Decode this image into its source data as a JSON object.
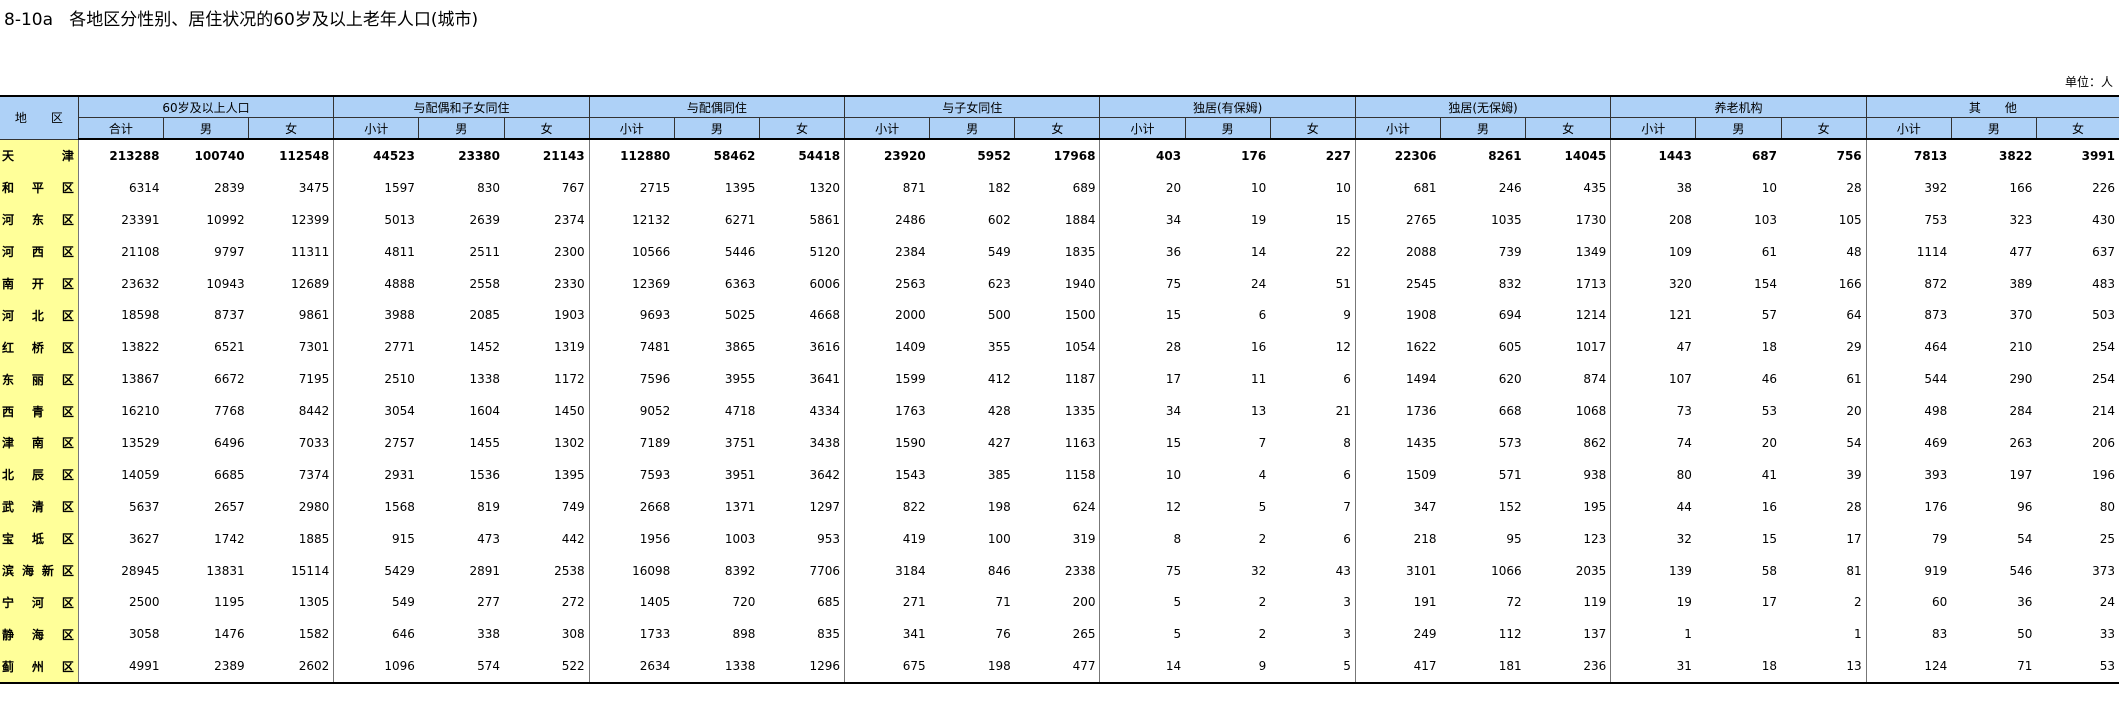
{
  "title": "8-10a   各地区分性别、居住状况的60岁及以上老年人口(城市)",
  "unit": "单位：人",
  "region_header": "地　　区",
  "groups": [
    "60岁及以上人口",
    "与配偶和子女同住",
    "与配偶同住",
    "与子女同住",
    "独居(有保姆)",
    "独居(无保姆)",
    "养老机构",
    "其　　他"
  ],
  "subheaders": [
    [
      "合计",
      "男",
      "女"
    ],
    [
      "小计",
      "男",
      "女"
    ],
    [
      "小计",
      "男",
      "女"
    ],
    [
      "小计",
      "男",
      "女"
    ],
    [
      "小计",
      "男",
      "女"
    ],
    [
      "小计",
      "男",
      "女"
    ],
    [
      "小计",
      "男",
      "女"
    ],
    [
      "小计",
      "男",
      "女"
    ]
  ],
  "rows": [
    {
      "region": "天　津",
      "values": [
        "213288",
        "100740",
        "112548",
        "44523",
        "23380",
        "21143",
        "112880",
        "58462",
        "54418",
        "23920",
        "5952",
        "17968",
        "403",
        "176",
        "227",
        "22306",
        "8261",
        "14045",
        "1443",
        "687",
        "756",
        "7813",
        "3822",
        "3991"
      ]
    },
    {
      "region": "和平区",
      "values": [
        "6314",
        "2839",
        "3475",
        "1597",
        "830",
        "767",
        "2715",
        "1395",
        "1320",
        "871",
        "182",
        "689",
        "20",
        "10",
        "10",
        "681",
        "246",
        "435",
        "38",
        "10",
        "28",
        "392",
        "166",
        "226"
      ]
    },
    {
      "region": "河东区",
      "values": [
        "23391",
        "10992",
        "12399",
        "5013",
        "2639",
        "2374",
        "12132",
        "6271",
        "5861",
        "2486",
        "602",
        "1884",
        "34",
        "19",
        "15",
        "2765",
        "1035",
        "1730",
        "208",
        "103",
        "105",
        "753",
        "323",
        "430"
      ]
    },
    {
      "region": "河西区",
      "values": [
        "21108",
        "9797",
        "11311",
        "4811",
        "2511",
        "2300",
        "10566",
        "5446",
        "5120",
        "2384",
        "549",
        "1835",
        "36",
        "14",
        "22",
        "2088",
        "739",
        "1349",
        "109",
        "61",
        "48",
        "1114",
        "477",
        "637"
      ]
    },
    {
      "region": "南开区",
      "values": [
        "23632",
        "10943",
        "12689",
        "4888",
        "2558",
        "2330",
        "12369",
        "6363",
        "6006",
        "2563",
        "623",
        "1940",
        "75",
        "24",
        "51",
        "2545",
        "832",
        "1713",
        "320",
        "154",
        "166",
        "872",
        "389",
        "483"
      ]
    },
    {
      "region": "河北区",
      "values": [
        "18598",
        "8737",
        "9861",
        "3988",
        "2085",
        "1903",
        "9693",
        "5025",
        "4668",
        "2000",
        "500",
        "1500",
        "15",
        "6",
        "9",
        "1908",
        "694",
        "1214",
        "121",
        "57",
        "64",
        "873",
        "370",
        "503"
      ]
    },
    {
      "region": "红桥区",
      "values": [
        "13822",
        "6521",
        "7301",
        "2771",
        "1452",
        "1319",
        "7481",
        "3865",
        "3616",
        "1409",
        "355",
        "1054",
        "28",
        "16",
        "12",
        "1622",
        "605",
        "1017",
        "47",
        "18",
        "29",
        "464",
        "210",
        "254"
      ]
    },
    {
      "region": "东丽区",
      "values": [
        "13867",
        "6672",
        "7195",
        "2510",
        "1338",
        "1172",
        "7596",
        "3955",
        "3641",
        "1599",
        "412",
        "1187",
        "17",
        "11",
        "6",
        "1494",
        "620",
        "874",
        "107",
        "46",
        "61",
        "544",
        "290",
        "254"
      ]
    },
    {
      "region": "西青区",
      "values": [
        "16210",
        "7768",
        "8442",
        "3054",
        "1604",
        "1450",
        "9052",
        "4718",
        "4334",
        "1763",
        "428",
        "1335",
        "34",
        "13",
        "21",
        "1736",
        "668",
        "1068",
        "73",
        "53",
        "20",
        "498",
        "284",
        "214"
      ]
    },
    {
      "region": "津南区",
      "values": [
        "13529",
        "6496",
        "7033",
        "2757",
        "1455",
        "1302",
        "7189",
        "3751",
        "3438",
        "1590",
        "427",
        "1163",
        "15",
        "7",
        "8",
        "1435",
        "573",
        "862",
        "74",
        "20",
        "54",
        "469",
        "263",
        "206"
      ]
    },
    {
      "region": "北辰区",
      "values": [
        "14059",
        "6685",
        "7374",
        "2931",
        "1536",
        "1395",
        "7593",
        "3951",
        "3642",
        "1543",
        "385",
        "1158",
        "10",
        "4",
        "6",
        "1509",
        "571",
        "938",
        "80",
        "41",
        "39",
        "393",
        "197",
        "196"
      ]
    },
    {
      "region": "武清区",
      "values": [
        "5637",
        "2657",
        "2980",
        "1568",
        "819",
        "749",
        "2668",
        "1371",
        "1297",
        "822",
        "198",
        "624",
        "12",
        "5",
        "7",
        "347",
        "152",
        "195",
        "44",
        "16",
        "28",
        "176",
        "96",
        "80"
      ]
    },
    {
      "region": "宝坻区",
      "values": [
        "3627",
        "1742",
        "1885",
        "915",
        "473",
        "442",
        "1956",
        "1003",
        "953",
        "419",
        "100",
        "319",
        "8",
        "2",
        "6",
        "218",
        "95",
        "123",
        "32",
        "15",
        "17",
        "79",
        "54",
        "25"
      ]
    },
    {
      "region": "滨海新区",
      "values": [
        "28945",
        "13831",
        "15114",
        "5429",
        "2891",
        "2538",
        "16098",
        "8392",
        "7706",
        "3184",
        "846",
        "2338",
        "75",
        "32",
        "43",
        "3101",
        "1066",
        "2035",
        "139",
        "58",
        "81",
        "919",
        "546",
        "373"
      ]
    },
    {
      "region": "宁河区",
      "values": [
        "2500",
        "1195",
        "1305",
        "549",
        "277",
        "272",
        "1405",
        "720",
        "685",
        "271",
        "71",
        "200",
        "5",
        "2",
        "3",
        "191",
        "72",
        "119",
        "19",
        "17",
        "2",
        "60",
        "36",
        "24"
      ]
    },
    {
      "region": "静海区",
      "values": [
        "3058",
        "1476",
        "1582",
        "646",
        "338",
        "308",
        "1733",
        "898",
        "835",
        "341",
        "76",
        "265",
        "5",
        "2",
        "3",
        "249",
        "112",
        "137",
        "1",
        "",
        "1",
        "83",
        "50",
        "33"
      ]
    },
    {
      "region": "蓟州区",
      "values": [
        "4991",
        "2389",
        "2602",
        "1096",
        "574",
        "522",
        "2634",
        "1338",
        "1296",
        "675",
        "198",
        "477",
        "14",
        "9",
        "5",
        "417",
        "181",
        "236",
        "31",
        "18",
        "13",
        "124",
        "71",
        "53"
      ]
    }
  ]
}
